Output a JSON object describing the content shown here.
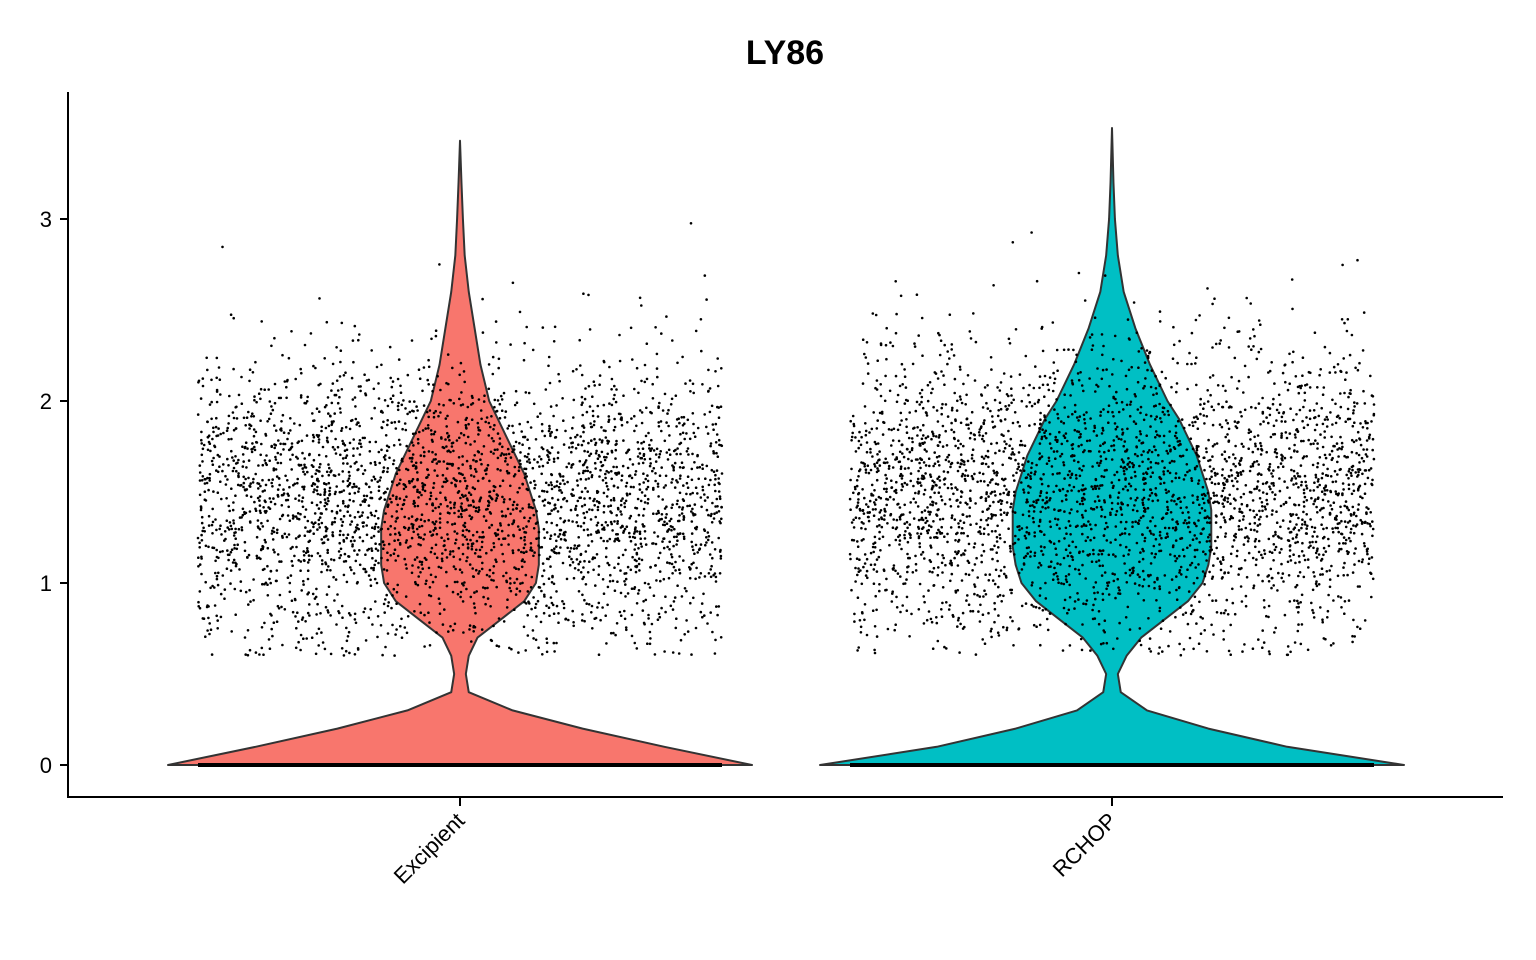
{
  "chart_data": {
    "type": "violin",
    "title": "LY86",
    "xlabel": "",
    "ylabel": "",
    "categories": [
      "Excipient",
      "RCHOP"
    ],
    "ylim": [
      -0.17,
      3.7
    ],
    "yticks": [
      0,
      1,
      2,
      3
    ],
    "grid": false,
    "legend": "none",
    "colors": {
      "Excipient": "#F8766D",
      "RCHOP": "#00BFC4"
    },
    "series": [
      {
        "category": "Excipient",
        "max": 3.43,
        "density": [
          [
            0,
            1.0
          ],
          [
            0.1,
            0.7
          ],
          [
            0.2,
            0.42
          ],
          [
            0.3,
            0.18
          ],
          [
            0.4,
            0.03
          ],
          [
            0.5,
            0.02
          ],
          [
            0.6,
            0.03
          ],
          [
            0.7,
            0.06
          ],
          [
            0.8,
            0.14
          ],
          [
            0.9,
            0.22
          ],
          [
            1.0,
            0.26
          ],
          [
            1.1,
            0.27
          ],
          [
            1.2,
            0.27
          ],
          [
            1.3,
            0.27
          ],
          [
            1.4,
            0.26
          ],
          [
            1.5,
            0.24
          ],
          [
            1.6,
            0.22
          ],
          [
            1.7,
            0.19
          ],
          [
            1.8,
            0.16
          ],
          [
            1.9,
            0.13
          ],
          [
            2.0,
            0.1
          ],
          [
            2.2,
            0.07
          ],
          [
            2.4,
            0.05
          ],
          [
            2.6,
            0.03
          ],
          [
            2.8,
            0.016
          ],
          [
            3.0,
            0.01
          ],
          [
            3.2,
            0.005
          ],
          [
            3.43,
            0.0
          ]
        ],
        "zero_fraction": 0.55,
        "expr_mean": 1.45,
        "expr_sd": 0.4
      },
      {
        "category": "RCHOP",
        "max": 3.5,
        "density": [
          [
            0,
            1.0
          ],
          [
            0.1,
            0.6
          ],
          [
            0.2,
            0.33
          ],
          [
            0.3,
            0.12
          ],
          [
            0.4,
            0.03
          ],
          [
            0.5,
            0.02
          ],
          [
            0.6,
            0.05
          ],
          [
            0.7,
            0.1
          ],
          [
            0.8,
            0.18
          ],
          [
            0.9,
            0.26
          ],
          [
            1.0,
            0.31
          ],
          [
            1.1,
            0.33
          ],
          [
            1.2,
            0.34
          ],
          [
            1.3,
            0.34
          ],
          [
            1.4,
            0.34
          ],
          [
            1.5,
            0.33
          ],
          [
            1.6,
            0.31
          ],
          [
            1.7,
            0.29
          ],
          [
            1.8,
            0.26
          ],
          [
            1.9,
            0.23
          ],
          [
            2.0,
            0.19
          ],
          [
            2.2,
            0.13
          ],
          [
            2.4,
            0.08
          ],
          [
            2.6,
            0.04
          ],
          [
            2.8,
            0.02
          ],
          [
            3.0,
            0.01
          ],
          [
            3.2,
            0.005
          ],
          [
            3.5,
            0.0
          ]
        ],
        "zero_fraction": 0.5,
        "expr_mean": 1.5,
        "expr_sd": 0.42
      }
    ]
  }
}
